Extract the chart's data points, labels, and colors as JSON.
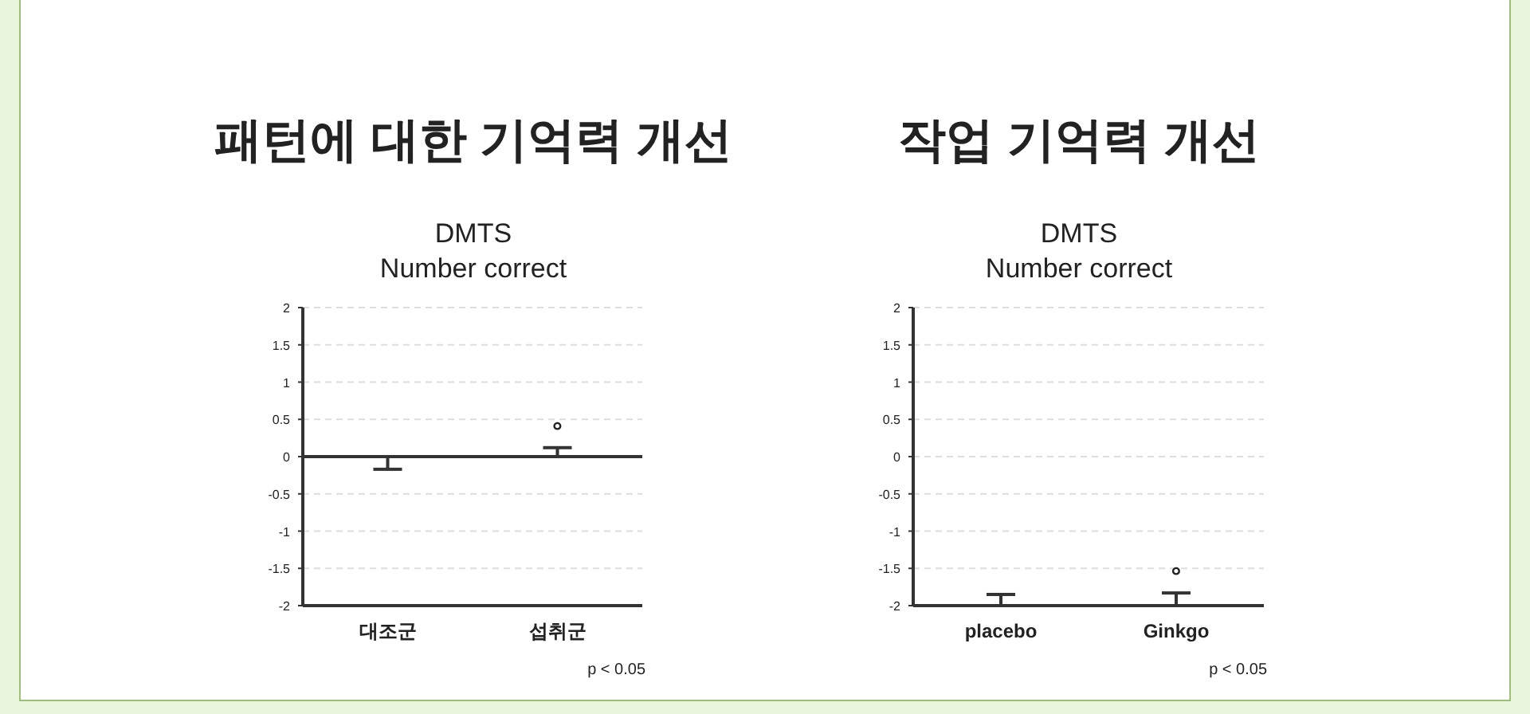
{
  "chart_data": [
    {
      "type": "bar",
      "title": "패턴에 대한 기억력 개선",
      "subtitle": "DMTS\nNumber correct",
      "categories": [
        "대조군",
        "섭취군"
      ],
      "values": [
        -0.17,
        0.12
      ],
      "color": "#333333",
      "ylim": [
        -2,
        2
      ],
      "yticks": [
        2,
        1.5,
        1,
        0.5,
        0,
        -0.5,
        -1,
        -1.5,
        -2
      ],
      "grid": "y",
      "ref_lines": [
        {
          "axis": "y",
          "value": 0
        }
      ],
      "annotations": [
        "°",
        "p < 0.05"
      ]
    },
    {
      "type": "bar",
      "title": "작업 기억력 개선",
      "subtitle": "DMTS\nNumber correct",
      "categories": [
        "placebo",
        "Ginkgo"
      ],
      "values": [
        0.15,
        0.17
      ],
      "base": [
        -2,
        -2
      ],
      "color": "#333333",
      "ylim": [
        -2,
        2
      ],
      "yticks": [
        2,
        1.5,
        1,
        0.5,
        0,
        -0.5,
        -1,
        -1.5,
        -2
      ],
      "grid": "y",
      "annotations": [
        "°",
        "p < 0.05"
      ]
    }
  ]
}
